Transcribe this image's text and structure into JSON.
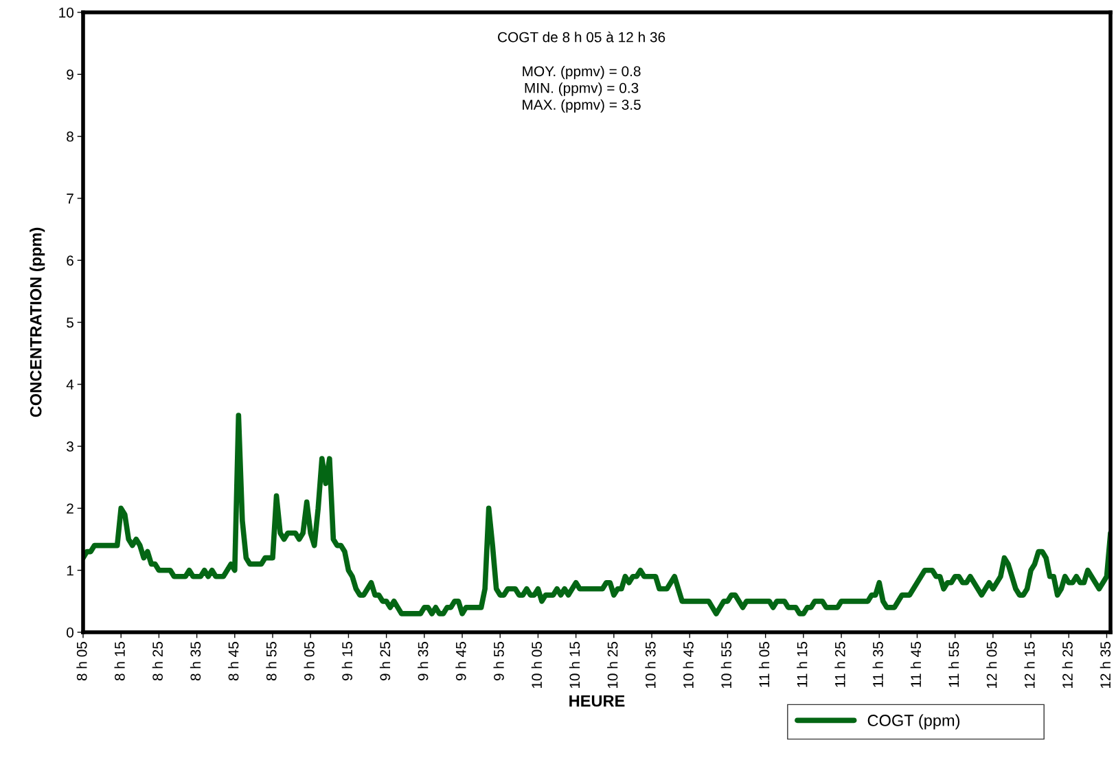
{
  "chart_data": {
    "type": "line",
    "title": "COGT de 8 h 05 à 12 h 36",
    "annotations": [
      "MOY. (ppmv) = 0.8",
      "MIN. (ppmv) = 0.3",
      "MAX. (ppmv) = 3.5"
    ],
    "xlabel": "HEURE",
    "ylabel": "CONCENTRATION (ppm)",
    "categories": [
      "8 h 05",
      null,
      null,
      null,
      null,
      null,
      null,
      null,
      null,
      null,
      "8 h 15",
      null,
      null,
      null,
      null,
      null,
      null,
      null,
      null,
      null,
      "8 h 25",
      null,
      null,
      null,
      null,
      null,
      null,
      null,
      null,
      null,
      "8 h 35",
      null,
      null,
      null,
      null,
      null,
      null,
      null,
      null,
      null,
      "8 h 45",
      null,
      null,
      null,
      null,
      null,
      null,
      null,
      null,
      null,
      "8 h 55",
      null,
      null,
      null,
      null,
      null,
      null,
      null,
      null,
      null,
      "9 h 05",
      null,
      null,
      null,
      null,
      null,
      null,
      null,
      null,
      null,
      "9 h 15",
      null,
      null,
      null,
      null,
      null,
      null,
      null,
      null,
      null,
      "9 h 25",
      null,
      null,
      null,
      null,
      null,
      null,
      null,
      null,
      null,
      "9 h 35",
      null,
      null,
      null,
      null,
      null,
      null,
      null,
      null,
      null,
      "9 h 45",
      null,
      null,
      null,
      null,
      null,
      null,
      null,
      null,
      null,
      "9 h 55",
      null,
      null,
      null,
      null,
      null,
      null,
      null,
      null,
      null,
      "10 h 05",
      null,
      null,
      null,
      null,
      null,
      null,
      null,
      null,
      null,
      "10 h 15",
      null,
      null,
      null,
      null,
      null,
      null,
      null,
      null,
      null,
      "10 h 25",
      null,
      null,
      null,
      null,
      null,
      null,
      null,
      null,
      null,
      "10 h 35",
      null,
      null,
      null,
      null,
      null,
      null,
      null,
      null,
      null,
      "10 h 45",
      null,
      null,
      null,
      null,
      null,
      null,
      null,
      null,
      null,
      "10 h 55",
      null,
      null,
      null,
      null,
      null,
      null,
      null,
      null,
      null,
      "11 h 05",
      null,
      null,
      null,
      null,
      null,
      null,
      null,
      null,
      null,
      "11 h 15",
      null,
      null,
      null,
      null,
      null,
      null,
      null,
      null,
      null,
      "11 h 25",
      null,
      null,
      null,
      null,
      null,
      null,
      null,
      null,
      null,
      "11 h 35",
      null,
      null,
      null,
      null,
      null,
      null,
      null,
      null,
      null,
      "11 h 45",
      null,
      null,
      null,
      null,
      null,
      null,
      null,
      null,
      null,
      "11 h 55",
      null,
      null,
      null,
      null,
      null,
      null,
      null,
      null,
      null,
      "12 h 05",
      null,
      null,
      null,
      null,
      null,
      null,
      null,
      null,
      null,
      "12 h 15",
      null,
      null,
      null,
      null,
      null,
      null,
      null,
      null,
      null,
      "12 h 25",
      null,
      null,
      null,
      null,
      null,
      null,
      null,
      null,
      null,
      "12 h 35",
      null
    ],
    "series": [
      {
        "name": "COGT (ppm)",
        "color": "#046614",
        "values": [
          1.2,
          1.3,
          1.3,
          1.4,
          1.4,
          1.4,
          1.4,
          1.4,
          1.4,
          1.4,
          2.0,
          1.9,
          1.5,
          1.4,
          1.5,
          1.4,
          1.2,
          1.3,
          1.1,
          1.1,
          1.0,
          1.0,
          1.0,
          1.0,
          0.9,
          0.9,
          0.9,
          0.9,
          1.0,
          0.9,
          0.9,
          0.9,
          1.0,
          0.9,
          1.0,
          0.9,
          0.9,
          0.9,
          1.0,
          1.1,
          1.0,
          3.5,
          1.8,
          1.2,
          1.1,
          1.1,
          1.1,
          1.1,
          1.2,
          1.2,
          1.2,
          2.2,
          1.6,
          1.5,
          1.6,
          1.6,
          1.6,
          1.5,
          1.6,
          2.1,
          1.6,
          1.4,
          2.0,
          2.8,
          2.4,
          2.8,
          1.5,
          1.4,
          1.4,
          1.3,
          1.0,
          0.9,
          0.7,
          0.6,
          0.6,
          0.7,
          0.8,
          0.6,
          0.6,
          0.5,
          0.5,
          0.4,
          0.5,
          0.4,
          0.3,
          0.3,
          0.3,
          0.3,
          0.3,
          0.3,
          0.4,
          0.4,
          0.3,
          0.4,
          0.3,
          0.3,
          0.4,
          0.4,
          0.5,
          0.5,
          0.3,
          0.4,
          0.4,
          0.4,
          0.4,
          0.4,
          0.7,
          2.0,
          1.4,
          0.7,
          0.6,
          0.6,
          0.7,
          0.7,
          0.7,
          0.6,
          0.6,
          0.7,
          0.6,
          0.6,
          0.7,
          0.5,
          0.6,
          0.6,
          0.6,
          0.7,
          0.6,
          0.7,
          0.6,
          0.7,
          0.8,
          0.7,
          0.7,
          0.7,
          0.7,
          0.7,
          0.7,
          0.7,
          0.8,
          0.8,
          0.6,
          0.7,
          0.7,
          0.9,
          0.8,
          0.9,
          0.9,
          1.0,
          0.9,
          0.9,
          0.9,
          0.9,
          0.7,
          0.7,
          0.7,
          0.8,
          0.9,
          0.7,
          0.5,
          0.5,
          0.5,
          0.5,
          0.5,
          0.5,
          0.5,
          0.5,
          0.4,
          0.3,
          0.4,
          0.5,
          0.5,
          0.6,
          0.6,
          0.5,
          0.4,
          0.5,
          0.5,
          0.5,
          0.5,
          0.5,
          0.5,
          0.5,
          0.4,
          0.5,
          0.5,
          0.5,
          0.4,
          0.4,
          0.4,
          0.3,
          0.3,
          0.4,
          0.4,
          0.5,
          0.5,
          0.5,
          0.4,
          0.4,
          0.4,
          0.4,
          0.5,
          0.5,
          0.5,
          0.5,
          0.5,
          0.5,
          0.5,
          0.5,
          0.6,
          0.6,
          0.8,
          0.5,
          0.4,
          0.4,
          0.4,
          0.5,
          0.6,
          0.6,
          0.6,
          0.7,
          0.8,
          0.9,
          1.0,
          1.0,
          1.0,
          0.9,
          0.9,
          0.7,
          0.8,
          0.8,
          0.9,
          0.9,
          0.8,
          0.8,
          0.9,
          0.8,
          0.7,
          0.6,
          0.7,
          0.8,
          0.7,
          0.8,
          0.9,
          1.2,
          1.1,
          0.9,
          0.7,
          0.6,
          0.6,
          0.7,
          1.0,
          1.1,
          1.3,
          1.3,
          1.2,
          0.9,
          0.9,
          0.6,
          0.7,
          0.9,
          0.8,
          0.8,
          0.9,
          0.8,
          0.8,
          1.0,
          0.9,
          0.8,
          0.7,
          0.8,
          0.9,
          1.6
        ]
      }
    ],
    "ylim": [
      0,
      10
    ],
    "yticks": [
      0,
      1,
      2,
      3,
      4,
      5,
      6,
      7,
      8,
      9,
      10
    ],
    "grid": false,
    "legend": "bottom right",
    "marker": "none",
    "line_style": "solid"
  }
}
